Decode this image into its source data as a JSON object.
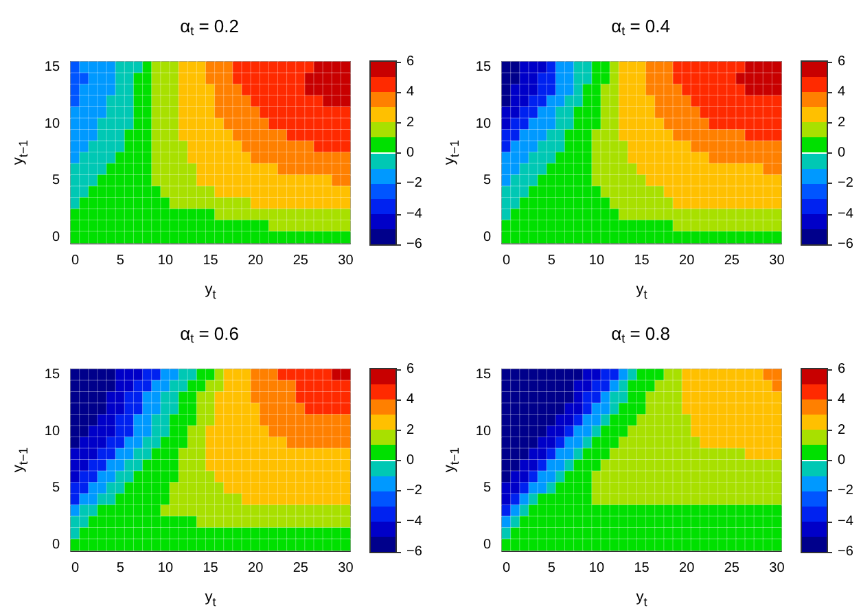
{
  "chart_data": [
    {
      "type": "heatmap",
      "title": "α$_{t}$ = 0.2",
      "xlabel": "y$_{t}$",
      "ylabel": "y$_{t−1}$",
      "categories": [
        "0",
        null,
        null,
        null,
        null,
        "5",
        null,
        null,
        null,
        null,
        "10",
        null,
        null,
        null,
        null,
        "15",
        null,
        null,
        null,
        null,
        "20",
        null,
        null,
        null,
        null,
        "25",
        null,
        null,
        null,
        null,
        "30"
      ],
      "y_categories": [
        "15",
        null,
        null,
        null,
        null,
        "10",
        null,
        null,
        null,
        null,
        "5",
        null,
        null,
        null,
        null,
        "0"
      ],
      "clim": [
        -6,
        6
      ],
      "cticks": [
        -6,
        -4,
        -2,
        0,
        2,
        4,
        6
      ],
      "cells": [
        [
          -2.5,
          -1.5,
          -1.5,
          -1.5,
          -1.5,
          -0.5,
          -0.5,
          -0.5,
          0.5,
          1.5,
          1.5,
          1.5,
          2.5,
          2.5,
          2.5,
          3.5,
          3.5,
          3.5,
          4.5,
          4.5,
          4.5,
          4.5,
          4.5,
          4.5,
          4.5,
          4.5,
          4.5,
          5.5,
          5.5,
          5.5,
          5.5
        ],
        [
          -2.5,
          -2.5,
          -1.5,
          -1.5,
          -1.5,
          -0.5,
          -0.5,
          0.5,
          0.5,
          1.5,
          1.5,
          1.5,
          2.5,
          2.5,
          2.5,
          3.5,
          3.5,
          3.5,
          4.5,
          4.5,
          4.5,
          4.5,
          4.5,
          4.5,
          4.5,
          4.5,
          5.5,
          5.5,
          5.5,
          5.5,
          5.5
        ],
        [
          -2.5,
          -1.5,
          -1.5,
          -1.5,
          -1.5,
          -0.5,
          -0.5,
          0.5,
          0.5,
          1.5,
          1.5,
          1.5,
          2.5,
          2.5,
          2.5,
          2.5,
          3.5,
          3.5,
          3.5,
          4.5,
          4.5,
          4.5,
          4.5,
          4.5,
          4.5,
          4.5,
          5.5,
          5.5,
          5.5,
          5.5,
          5.5
        ],
        [
          -2.5,
          -1.5,
          -1.5,
          -1.5,
          -0.5,
          -0.5,
          -0.5,
          0.5,
          0.5,
          1.5,
          1.5,
          1.5,
          2.5,
          2.5,
          2.5,
          2.5,
          3.5,
          3.5,
          3.5,
          3.5,
          4.5,
          4.5,
          4.5,
          4.5,
          4.5,
          4.5,
          4.5,
          4.5,
          5.5,
          5.5,
          5.5
        ],
        [
          -1.5,
          -1.5,
          -1.5,
          -1.5,
          -0.5,
          -0.5,
          -0.5,
          0.5,
          0.5,
          1.5,
          1.5,
          1.5,
          2.5,
          2.5,
          2.5,
          2.5,
          3.5,
          3.5,
          3.5,
          3.5,
          3.5,
          4.5,
          4.5,
          4.5,
          4.5,
          4.5,
          4.5,
          4.5,
          4.5,
          4.5,
          4.5
        ],
        [
          -1.5,
          -1.5,
          -1.5,
          -0.5,
          -0.5,
          -0.5,
          -0.5,
          0.5,
          0.5,
          1.5,
          1.5,
          1.5,
          2.5,
          2.5,
          2.5,
          2.5,
          2.5,
          3.5,
          3.5,
          3.5,
          3.5,
          3.5,
          4.5,
          4.5,
          4.5,
          4.5,
          4.5,
          4.5,
          4.5,
          4.5,
          4.5
        ],
        [
          -1.5,
          -1.5,
          -1.5,
          -0.5,
          -0.5,
          -0.5,
          0.5,
          0.5,
          0.5,
          1.5,
          1.5,
          1.5,
          2.5,
          2.5,
          2.5,
          2.5,
          2.5,
          2.5,
          3.5,
          3.5,
          3.5,
          3.5,
          3.5,
          3.5,
          4.5,
          4.5,
          4.5,
          4.5,
          4.5,
          4.5,
          4.5
        ],
        [
          -1.5,
          -1.5,
          -0.5,
          -0.5,
          -0.5,
          -0.5,
          0.5,
          0.5,
          0.5,
          1.5,
          1.5,
          1.5,
          1.5,
          2.5,
          2.5,
          2.5,
          2.5,
          2.5,
          2.5,
          3.5,
          3.5,
          3.5,
          3.5,
          3.5,
          3.5,
          3.5,
          3.5,
          4.5,
          4.5,
          4.5,
          4.5
        ],
        [
          -1.5,
          -0.5,
          -0.5,
          -0.5,
          -0.5,
          0.5,
          0.5,
          0.5,
          0.5,
          1.5,
          1.5,
          1.5,
          1.5,
          2.5,
          2.5,
          2.5,
          2.5,
          2.5,
          2.5,
          2.5,
          3.5,
          3.5,
          3.5,
          3.5,
          3.5,
          3.5,
          3.5,
          3.5,
          3.5,
          3.5,
          3.5
        ],
        [
          -0.5,
          -0.5,
          -0.5,
          -0.5,
          0.5,
          0.5,
          0.5,
          0.5,
          0.5,
          1.5,
          1.5,
          1.5,
          1.5,
          1.5,
          2.5,
          2.5,
          2.5,
          2.5,
          2.5,
          2.5,
          2.5,
          2.5,
          2.5,
          3.5,
          3.5,
          3.5,
          3.5,
          3.5,
          3.5,
          3.5,
          3.5
        ],
        [
          -0.5,
          -0.5,
          -0.5,
          0.5,
          0.5,
          0.5,
          0.5,
          0.5,
          0.5,
          1.5,
          1.5,
          1.5,
          1.5,
          1.5,
          2.5,
          2.5,
          2.5,
          2.5,
          2.5,
          2.5,
          2.5,
          2.5,
          2.5,
          2.5,
          2.5,
          2.5,
          2.5,
          2.5,
          2.5,
          3.5,
          3.5
        ],
        [
          -0.5,
          -0.5,
          0.5,
          0.5,
          0.5,
          0.5,
          0.5,
          0.5,
          0.5,
          0.5,
          1.5,
          1.5,
          1.5,
          1.5,
          1.5,
          1.5,
          2.5,
          2.5,
          2.5,
          2.5,
          2.5,
          2.5,
          2.5,
          2.5,
          2.5,
          2.5,
          2.5,
          2.5,
          2.5,
          2.5,
          2.5
        ],
        [
          -0.5,
          0.5,
          0.5,
          0.5,
          0.5,
          0.5,
          0.5,
          0.5,
          0.5,
          0.5,
          0.5,
          1.5,
          1.5,
          1.5,
          1.5,
          1.5,
          1.5,
          1.5,
          1.5,
          1.5,
          2.5,
          2.5,
          2.5,
          2.5,
          2.5,
          2.5,
          2.5,
          2.5,
          2.5,
          2.5,
          2.5
        ],
        [
          0.5,
          0.5,
          0.5,
          0.5,
          0.5,
          0.5,
          0.5,
          0.5,
          0.5,
          0.5,
          0.5,
          0.5,
          0.5,
          0.5,
          0.5,
          0.5,
          1.5,
          1.5,
          1.5,
          1.5,
          1.5,
          1.5,
          1.5,
          1.5,
          1.5,
          1.5,
          1.5,
          1.5,
          1.5,
          1.5,
          1.5
        ],
        [
          0.5,
          0.5,
          0.5,
          0.5,
          0.5,
          0.5,
          0.5,
          0.5,
          0.5,
          0.5,
          0.5,
          0.5,
          0.5,
          0.5,
          0.5,
          0.5,
          0.5,
          0.5,
          0.5,
          0.5,
          0.5,
          0.5,
          1.5,
          1.5,
          1.5,
          1.5,
          1.5,
          1.5,
          1.5,
          1.5,
          1.5
        ],
        [
          0.5,
          0.5,
          0.5,
          0.5,
          0.5,
          0.5,
          0.5,
          0.5,
          0.5,
          0.5,
          0.5,
          0.5,
          0.5,
          0.5,
          0.5,
          0.5,
          0.5,
          0.5,
          0.5,
          0.5,
          0.5,
          0.5,
          0.5,
          0.5,
          0.5,
          0.5,
          0.5,
          0.5,
          0.5,
          0.5,
          0.5
        ]
      ]
    },
    {
      "type": "heatmap",
      "title": "α$_{t}$ = 0.4",
      "xlabel": "y$_{t}$",
      "ylabel": "y$_{t−1}$",
      "categories": [
        "0",
        null,
        null,
        null,
        null,
        "5",
        null,
        null,
        null,
        null,
        "10",
        null,
        null,
        null,
        null,
        "15",
        null,
        null,
        null,
        null,
        "20",
        null,
        null,
        null,
        null,
        "25",
        null,
        null,
        null,
        null,
        "30"
      ],
      "y_categories": [
        "15",
        null,
        null,
        null,
        null,
        "10",
        null,
        null,
        null,
        null,
        "5",
        null,
        null,
        null,
        null,
        "0"
      ],
      "clim": [
        -6,
        6
      ],
      "cticks": [
        -6,
        -4,
        -2,
        0,
        2,
        4,
        6
      ],
      "cells": [
        [
          -5.5,
          -5.5,
          -4.5,
          -4.5,
          -4.5,
          -3.5,
          -1.5,
          -1.5,
          -0.5,
          -0.5,
          0.5,
          0.5,
          1.5,
          2.5,
          2.5,
          2.5,
          3.5,
          3.5,
          3.5,
          4.5,
          4.5,
          4.5,
          4.5,
          4.5,
          4.5,
          4.5,
          4.5,
          5.5,
          5.5,
          5.5,
          5.5
        ],
        [
          -5.5,
          -5.5,
          -4.5,
          -4.5,
          -3.5,
          -3.5,
          -1.5,
          -1.5,
          -0.5,
          -0.5,
          0.5,
          0.5,
          1.5,
          2.5,
          2.5,
          2.5,
          3.5,
          3.5,
          3.5,
          4.5,
          4.5,
          4.5,
          4.5,
          4.5,
          4.5,
          4.5,
          5.5,
          5.5,
          5.5,
          5.5,
          5.5
        ],
        [
          -5.5,
          -4.5,
          -4.5,
          -4.5,
          -3.5,
          -3.5,
          -1.5,
          -1.5,
          -0.5,
          0.5,
          0.5,
          1.5,
          1.5,
          2.5,
          2.5,
          2.5,
          3.5,
          3.5,
          3.5,
          3.5,
          4.5,
          4.5,
          4.5,
          4.5,
          4.5,
          4.5,
          4.5,
          5.5,
          5.5,
          5.5,
          5.5
        ],
        [
          -5.5,
          -4.5,
          -4.5,
          -3.5,
          -3.5,
          -1.5,
          -1.5,
          -0.5,
          -0.5,
          0.5,
          0.5,
          1.5,
          1.5,
          2.5,
          2.5,
          2.5,
          2.5,
          3.5,
          3.5,
          3.5,
          3.5,
          4.5,
          4.5,
          4.5,
          4.5,
          4.5,
          4.5,
          4.5,
          4.5,
          4.5,
          4.5
        ],
        [
          -4.5,
          -4.5,
          -3.5,
          -3.5,
          -1.5,
          -1.5,
          -0.5,
          -0.5,
          0.5,
          0.5,
          0.5,
          1.5,
          1.5,
          2.5,
          2.5,
          2.5,
          2.5,
          3.5,
          3.5,
          3.5,
          3.5,
          3.5,
          4.5,
          4.5,
          4.5,
          4.5,
          4.5,
          4.5,
          4.5,
          4.5,
          4.5
        ],
        [
          -4.5,
          -3.5,
          -3.5,
          -1.5,
          -1.5,
          -1.5,
          -0.5,
          -0.5,
          0.5,
          0.5,
          0.5,
          1.5,
          1.5,
          2.5,
          2.5,
          2.5,
          2.5,
          2.5,
          3.5,
          3.5,
          3.5,
          3.5,
          3.5,
          4.5,
          4.5,
          4.5,
          4.5,
          4.5,
          4.5,
          4.5,
          4.5
        ],
        [
          -3.5,
          -3.5,
          -1.5,
          -1.5,
          -1.5,
          -0.5,
          -0.5,
          0.5,
          0.5,
          0.5,
          1.5,
          1.5,
          1.5,
          2.5,
          2.5,
          2.5,
          2.5,
          2.5,
          2.5,
          3.5,
          3.5,
          3.5,
          3.5,
          3.5,
          3.5,
          3.5,
          3.5,
          4.5,
          4.5,
          4.5,
          4.5
        ],
        [
          -3.5,
          -1.5,
          -1.5,
          -1.5,
          -0.5,
          -0.5,
          -0.5,
          0.5,
          0.5,
          0.5,
          1.5,
          1.5,
          1.5,
          1.5,
          2.5,
          2.5,
          2.5,
          2.5,
          2.5,
          2.5,
          2.5,
          3.5,
          3.5,
          3.5,
          3.5,
          3.5,
          3.5,
          3.5,
          3.5,
          3.5,
          3.5
        ],
        [
          -1.5,
          -1.5,
          -1.5,
          -0.5,
          -0.5,
          -0.5,
          0.5,
          0.5,
          0.5,
          0.5,
          1.5,
          1.5,
          1.5,
          1.5,
          2.5,
          2.5,
          2.5,
          2.5,
          2.5,
          2.5,
          2.5,
          2.5,
          2.5,
          3.5,
          3.5,
          3.5,
          3.5,
          3.5,
          3.5,
          3.5,
          3.5
        ],
        [
          -1.5,
          -1.5,
          -0.5,
          -0.5,
          -0.5,
          0.5,
          0.5,
          0.5,
          0.5,
          0.5,
          1.5,
          1.5,
          1.5,
          1.5,
          1.5,
          2.5,
          2.5,
          2.5,
          2.5,
          2.5,
          2.5,
          2.5,
          2.5,
          2.5,
          2.5,
          2.5,
          2.5,
          2.5,
          2.5,
          3.5,
          3.5
        ],
        [
          -1.5,
          -0.5,
          -0.5,
          -0.5,
          0.5,
          0.5,
          0.5,
          0.5,
          0.5,
          0.5,
          1.5,
          1.5,
          1.5,
          1.5,
          1.5,
          1.5,
          2.5,
          2.5,
          2.5,
          2.5,
          2.5,
          2.5,
          2.5,
          2.5,
          2.5,
          2.5,
          2.5,
          2.5,
          2.5,
          2.5,
          2.5
        ],
        [
          -0.5,
          -0.5,
          -0.5,
          0.5,
          0.5,
          0.5,
          0.5,
          0.5,
          0.5,
          0.5,
          0.5,
          1.5,
          1.5,
          1.5,
          1.5,
          1.5,
          1.5,
          1.5,
          2.5,
          2.5,
          2.5,
          2.5,
          2.5,
          2.5,
          2.5,
          2.5,
          2.5,
          2.5,
          2.5,
          2.5,
          2.5
        ],
        [
          -0.5,
          -0.5,
          0.5,
          0.5,
          0.5,
          0.5,
          0.5,
          0.5,
          0.5,
          0.5,
          0.5,
          0.5,
          1.5,
          1.5,
          1.5,
          1.5,
          1.5,
          1.5,
          1.5,
          2.5,
          2.5,
          2.5,
          2.5,
          2.5,
          2.5,
          2.5,
          2.5,
          2.5,
          2.5,
          2.5,
          2.5
        ],
        [
          -0.5,
          0.5,
          0.5,
          0.5,
          0.5,
          0.5,
          0.5,
          0.5,
          0.5,
          0.5,
          0.5,
          0.5,
          0.5,
          1.5,
          1.5,
          1.5,
          1.5,
          1.5,
          1.5,
          1.5,
          1.5,
          1.5,
          1.5,
          1.5,
          1.5,
          1.5,
          1.5,
          1.5,
          1.5,
          1.5,
          1.5
        ],
        [
          0.5,
          0.5,
          0.5,
          0.5,
          0.5,
          0.5,
          0.5,
          0.5,
          0.5,
          0.5,
          0.5,
          0.5,
          0.5,
          0.5,
          0.5,
          0.5,
          0.5,
          0.5,
          0.5,
          1.5,
          1.5,
          1.5,
          1.5,
          1.5,
          1.5,
          1.5,
          1.5,
          1.5,
          1.5,
          1.5,
          1.5
        ],
        [
          0.5,
          0.5,
          0.5,
          0.5,
          0.5,
          0.5,
          0.5,
          0.5,
          0.5,
          0.5,
          0.5,
          0.5,
          0.5,
          0.5,
          0.5,
          0.5,
          0.5,
          0.5,
          0.5,
          0.5,
          0.5,
          0.5,
          0.5,
          0.5,
          0.5,
          0.5,
          0.5,
          0.5,
          0.5,
          0.5,
          0.5
        ]
      ]
    },
    {
      "type": "heatmap",
      "title": "α$_{t}$ = 0.6",
      "xlabel": "y$_{t}$",
      "ylabel": "y$_{t−1}$",
      "categories": [
        "0",
        null,
        null,
        null,
        null,
        "5",
        null,
        null,
        null,
        null,
        "10",
        null,
        null,
        null,
        null,
        "15",
        null,
        null,
        null,
        null,
        "20",
        null,
        null,
        null,
        null,
        "25",
        null,
        null,
        null,
        null,
        "30"
      ],
      "y_categories": [
        "15",
        null,
        null,
        null,
        null,
        "10",
        null,
        null,
        null,
        null,
        "5",
        null,
        null,
        null,
        null,
        "0"
      ],
      "clim": [
        -6,
        6
      ],
      "cticks": [
        -6,
        -4,
        -2,
        0,
        2,
        4,
        6
      ],
      "cells": [
        [
          -5.5,
          -5.5,
          -5.5,
          -5.5,
          -5.5,
          -4.5,
          -4.5,
          -4.5,
          -3.5,
          -3.5,
          -1.5,
          -1.5,
          -0.5,
          -0.5,
          0.5,
          0.5,
          1.5,
          2.5,
          2.5,
          2.5,
          3.5,
          3.5,
          3.5,
          4.5,
          4.5,
          4.5,
          4.5,
          4.5,
          4.5,
          5.5,
          5.5
        ],
        [
          -5.5,
          -5.5,
          -5.5,
          -5.5,
          -5.5,
          -4.5,
          -4.5,
          -3.5,
          -3.5,
          -1.5,
          -1.5,
          -0.5,
          -0.5,
          0.5,
          0.5,
          1.5,
          1.5,
          2.5,
          2.5,
          2.5,
          3.5,
          3.5,
          3.5,
          3.5,
          3.5,
          4.5,
          4.5,
          4.5,
          4.5,
          4.5,
          4.5
        ],
        [
          -5.5,
          -5.5,
          -5.5,
          -5.5,
          -4.5,
          -4.5,
          -3.5,
          -3.5,
          -1.5,
          -1.5,
          -0.5,
          -0.5,
          0.5,
          0.5,
          1.5,
          1.5,
          2.5,
          2.5,
          2.5,
          2.5,
          3.5,
          3.5,
          3.5,
          3.5,
          3.5,
          4.5,
          4.5,
          4.5,
          4.5,
          4.5,
          4.5
        ],
        [
          -5.5,
          -5.5,
          -5.5,
          -5.5,
          -4.5,
          -4.5,
          -3.5,
          -3.5,
          -1.5,
          -1.5,
          -0.5,
          -0.5,
          0.5,
          0.5,
          1.5,
          1.5,
          2.5,
          2.5,
          2.5,
          2.5,
          2.5,
          3.5,
          3.5,
          3.5,
          3.5,
          3.5,
          4.5,
          4.5,
          4.5,
          4.5,
          4.5
        ],
        [
          -5.5,
          -5.5,
          -5.5,
          -4.5,
          -4.5,
          -3.5,
          -3.5,
          -1.5,
          -1.5,
          -0.5,
          -0.5,
          0.5,
          0.5,
          0.5,
          1.5,
          1.5,
          2.5,
          2.5,
          2.5,
          2.5,
          2.5,
          3.5,
          3.5,
          3.5,
          3.5,
          3.5,
          3.5,
          3.5,
          3.5,
          3.5,
          3.5
        ],
        [
          -5.5,
          -5.5,
          -4.5,
          -4.5,
          -4.5,
          -3.5,
          -3.5,
          -1.5,
          -1.5,
          -0.5,
          -0.5,
          0.5,
          0.5,
          1.5,
          1.5,
          2.5,
          2.5,
          2.5,
          2.5,
          2.5,
          2.5,
          2.5,
          3.5,
          3.5,
          3.5,
          3.5,
          3.5,
          3.5,
          3.5,
          3.5,
          3.5
        ],
        [
          -5.5,
          -4.5,
          -4.5,
          -4.5,
          -3.5,
          -3.5,
          -1.5,
          -1.5,
          -0.5,
          -0.5,
          0.5,
          0.5,
          0.5,
          1.5,
          1.5,
          2.5,
          2.5,
          2.5,
          2.5,
          2.5,
          2.5,
          2.5,
          2.5,
          2.5,
          3.5,
          3.5,
          3.5,
          3.5,
          3.5,
          3.5,
          3.5
        ],
        [
          -4.5,
          -4.5,
          -4.5,
          -3.5,
          -3.5,
          -1.5,
          -1.5,
          -0.5,
          -0.5,
          0.5,
          0.5,
          0.5,
          1.5,
          1.5,
          1.5,
          2.5,
          2.5,
          2.5,
          2.5,
          2.5,
          2.5,
          2.5,
          2.5,
          2.5,
          2.5,
          2.5,
          2.5,
          2.5,
          2.5,
          2.5,
          2.5
        ],
        [
          -4.5,
          -4.5,
          -3.5,
          -3.5,
          -1.5,
          -1.5,
          -0.5,
          -0.5,
          0.5,
          0.5,
          0.5,
          0.5,
          1.5,
          1.5,
          1.5,
          2.5,
          2.5,
          2.5,
          2.5,
          2.5,
          2.5,
          2.5,
          2.5,
          2.5,
          2.5,
          2.5,
          2.5,
          2.5,
          2.5,
          2.5,
          2.5
        ],
        [
          -4.5,
          -3.5,
          -3.5,
          -1.5,
          -1.5,
          -0.5,
          -0.5,
          0.5,
          0.5,
          0.5,
          0.5,
          0.5,
          1.5,
          1.5,
          1.5,
          1.5,
          2.5,
          2.5,
          2.5,
          2.5,
          2.5,
          2.5,
          2.5,
          2.5,
          2.5,
          2.5,
          2.5,
          2.5,
          2.5,
          2.5,
          2.5
        ],
        [
          -3.5,
          -3.5,
          -1.5,
          -1.5,
          -0.5,
          -0.5,
          0.5,
          0.5,
          0.5,
          0.5,
          0.5,
          1.5,
          1.5,
          1.5,
          1.5,
          1.5,
          1.5,
          2.5,
          2.5,
          2.5,
          2.5,
          2.5,
          2.5,
          2.5,
          2.5,
          2.5,
          2.5,
          2.5,
          2.5,
          2.5,
          2.5
        ],
        [
          -3.5,
          -1.5,
          -1.5,
          -0.5,
          -0.5,
          0.5,
          0.5,
          0.5,
          0.5,
          0.5,
          0.5,
          1.5,
          1.5,
          1.5,
          1.5,
          1.5,
          1.5,
          1.5,
          1.5,
          2.5,
          2.5,
          2.5,
          2.5,
          2.5,
          2.5,
          2.5,
          2.5,
          2.5,
          2.5,
          2.5,
          2.5
        ],
        [
          -1.5,
          -0.5,
          -0.5,
          0.5,
          0.5,
          0.5,
          0.5,
          0.5,
          0.5,
          0.5,
          1.5,
          1.5,
          1.5,
          1.5,
          1.5,
          1.5,
          1.5,
          1.5,
          1.5,
          1.5,
          1.5,
          1.5,
          1.5,
          1.5,
          1.5,
          1.5,
          1.5,
          1.5,
          1.5,
          1.5,
          1.5
        ],
        [
          -0.5,
          -0.5,
          0.5,
          0.5,
          0.5,
          0.5,
          0.5,
          0.5,
          0.5,
          0.5,
          0.5,
          0.5,
          0.5,
          0.5,
          1.5,
          1.5,
          1.5,
          1.5,
          1.5,
          1.5,
          1.5,
          1.5,
          1.5,
          1.5,
          1.5,
          1.5,
          1.5,
          1.5,
          1.5,
          1.5,
          1.5
        ],
        [
          -0.5,
          0.5,
          0.5,
          0.5,
          0.5,
          0.5,
          0.5,
          0.5,
          0.5,
          0.5,
          0.5,
          0.5,
          0.5,
          0.5,
          0.5,
          0.5,
          0.5,
          0.5,
          0.5,
          0.5,
          0.5,
          0.5,
          0.5,
          0.5,
          0.5,
          0.5,
          0.5,
          0.5,
          0.5,
          0.5,
          0.5
        ],
        [
          0.5,
          0.5,
          0.5,
          0.5,
          0.5,
          0.5,
          0.5,
          0.5,
          0.5,
          0.5,
          0.5,
          0.5,
          0.5,
          0.5,
          0.5,
          0.5,
          0.5,
          0.5,
          0.5,
          0.5,
          0.5,
          0.5,
          0.5,
          0.5,
          0.5,
          0.5,
          0.5,
          0.5,
          0.5,
          0.5,
          0.5
        ]
      ]
    },
    {
      "type": "heatmap",
      "title": "α$_{t}$ = 0.8",
      "xlabel": "y$_{t}$",
      "ylabel": "y$_{t−1}$",
      "categories": [
        "0",
        null,
        null,
        null,
        null,
        "5",
        null,
        null,
        null,
        null,
        "10",
        null,
        null,
        null,
        null,
        "15",
        null,
        null,
        null,
        null,
        "20",
        null,
        null,
        null,
        null,
        "25",
        null,
        null,
        null,
        null,
        "30"
      ],
      "y_categories": [
        "15",
        null,
        null,
        null,
        null,
        "10",
        null,
        null,
        null,
        null,
        "5",
        null,
        null,
        null,
        null,
        "0"
      ],
      "clim": [
        -6,
        6
      ],
      "cticks": [
        -6,
        -4,
        -2,
        0,
        2,
        4,
        6
      ],
      "cells": [
        [
          -5.5,
          -5.5,
          -5.5,
          -5.5,
          -5.5,
          -5.5,
          -5.5,
          -5.5,
          -5.5,
          -4.5,
          -4.5,
          -3.5,
          -3.5,
          -1.5,
          -0.5,
          0.5,
          0.5,
          0.5,
          1.5,
          1.5,
          2.5,
          2.5,
          2.5,
          2.5,
          2.5,
          2.5,
          2.5,
          2.5,
          2.5,
          3.5,
          3.5
        ],
        [
          -5.5,
          -5.5,
          -5.5,
          -5.5,
          -5.5,
          -5.5,
          -5.5,
          -5.5,
          -4.5,
          -4.5,
          -3.5,
          -3.5,
          -1.5,
          -0.5,
          0.5,
          0.5,
          0.5,
          1.5,
          1.5,
          1.5,
          2.5,
          2.5,
          2.5,
          2.5,
          2.5,
          2.5,
          2.5,
          2.5,
          2.5,
          2.5,
          3.5
        ],
        [
          -5.5,
          -5.5,
          -5.5,
          -5.5,
          -5.5,
          -5.5,
          -5.5,
          -5.5,
          -4.5,
          -3.5,
          -3.5,
          -1.5,
          -0.5,
          -0.5,
          0.5,
          0.5,
          1.5,
          1.5,
          1.5,
          1.5,
          2.5,
          2.5,
          2.5,
          2.5,
          2.5,
          2.5,
          2.5,
          2.5,
          2.5,
          2.5,
          2.5
        ],
        [
          -5.5,
          -5.5,
          -5.5,
          -5.5,
          -5.5,
          -5.5,
          -5.5,
          -4.5,
          -4.5,
          -3.5,
          -1.5,
          -1.5,
          -0.5,
          0.5,
          0.5,
          0.5,
          1.5,
          1.5,
          1.5,
          1.5,
          2.5,
          2.5,
          2.5,
          2.5,
          2.5,
          2.5,
          2.5,
          2.5,
          2.5,
          2.5,
          2.5
        ],
        [
          -5.5,
          -5.5,
          -5.5,
          -5.5,
          -5.5,
          -5.5,
          -4.5,
          -4.5,
          -3.5,
          -1.5,
          -1.5,
          -0.5,
          0.5,
          0.5,
          0.5,
          1.5,
          1.5,
          1.5,
          1.5,
          1.5,
          1.5,
          2.5,
          2.5,
          2.5,
          2.5,
          2.5,
          2.5,
          2.5,
          2.5,
          2.5,
          2.5
        ],
        [
          -5.5,
          -5.5,
          -5.5,
          -5.5,
          -5.5,
          -4.5,
          -4.5,
          -3.5,
          -1.5,
          -1.5,
          -0.5,
          0.5,
          0.5,
          0.5,
          1.5,
          1.5,
          1.5,
          1.5,
          1.5,
          1.5,
          1.5,
          2.5,
          2.5,
          2.5,
          2.5,
          2.5,
          2.5,
          2.5,
          2.5,
          2.5,
          2.5
        ],
        [
          -5.5,
          -5.5,
          -5.5,
          -5.5,
          -4.5,
          -4.5,
          -3.5,
          -1.5,
          -1.5,
          -0.5,
          0.5,
          0.5,
          0.5,
          1.5,
          1.5,
          1.5,
          1.5,
          1.5,
          1.5,
          1.5,
          1.5,
          1.5,
          2.5,
          2.5,
          2.5,
          2.5,
          2.5,
          2.5,
          2.5,
          2.5,
          2.5
        ],
        [
          -5.5,
          -5.5,
          -5.5,
          -4.5,
          -4.5,
          -3.5,
          -1.5,
          -1.5,
          -0.5,
          0.5,
          0.5,
          0.5,
          1.5,
          1.5,
          1.5,
          1.5,
          1.5,
          1.5,
          1.5,
          1.5,
          1.5,
          1.5,
          1.5,
          1.5,
          1.5,
          1.5,
          1.5,
          2.5,
          2.5,
          2.5,
          2.5
        ],
        [
          -5.5,
          -5.5,
          -4.5,
          -4.5,
          -3.5,
          -1.5,
          -1.5,
          -0.5,
          0.5,
          0.5,
          0.5,
          1.5,
          1.5,
          1.5,
          1.5,
          1.5,
          1.5,
          1.5,
          1.5,
          1.5,
          1.5,
          1.5,
          1.5,
          1.5,
          1.5,
          1.5,
          1.5,
          1.5,
          1.5,
          1.5,
          1.5
        ],
        [
          -5.5,
          -4.5,
          -4.5,
          -3.5,
          -1.5,
          -1.5,
          -0.5,
          0.5,
          0.5,
          0.5,
          1.5,
          1.5,
          1.5,
          1.5,
          1.5,
          1.5,
          1.5,
          1.5,
          1.5,
          1.5,
          1.5,
          1.5,
          1.5,
          1.5,
          1.5,
          1.5,
          1.5,
          1.5,
          1.5,
          1.5,
          1.5
        ],
        [
          -4.5,
          -4.5,
          -3.5,
          -1.5,
          -1.5,
          -0.5,
          0.5,
          0.5,
          0.5,
          0.5,
          1.5,
          1.5,
          1.5,
          1.5,
          1.5,
          1.5,
          1.5,
          1.5,
          1.5,
          1.5,
          1.5,
          1.5,
          1.5,
          1.5,
          1.5,
          1.5,
          1.5,
          1.5,
          1.5,
          1.5,
          1.5
        ],
        [
          -4.5,
          -3.5,
          -1.5,
          -0.5,
          0.5,
          0.5,
          0.5,
          0.5,
          0.5,
          0.5,
          1.5,
          1.5,
          1.5,
          1.5,
          1.5,
          1.5,
          1.5,
          1.5,
          1.5,
          1.5,
          1.5,
          1.5,
          1.5,
          1.5,
          1.5,
          1.5,
          1.5,
          1.5,
          1.5,
          1.5,
          1.5
        ],
        [
          -3.5,
          -1.5,
          -0.5,
          0.5,
          0.5,
          0.5,
          0.5,
          0.5,
          0.5,
          0.5,
          0.5,
          0.5,
          0.5,
          0.5,
          0.5,
          0.5,
          0.5,
          0.5,
          0.5,
          0.5,
          0.5,
          0.5,
          0.5,
          0.5,
          0.5,
          0.5,
          0.5,
          0.5,
          0.5,
          0.5,
          0.5
        ],
        [
          -1.5,
          -0.5,
          0.5,
          0.5,
          0.5,
          0.5,
          0.5,
          0.5,
          0.5,
          0.5,
          0.5,
          0.5,
          0.5,
          0.5,
          0.5,
          0.5,
          0.5,
          0.5,
          0.5,
          0.5,
          0.5,
          0.5,
          0.5,
          0.5,
          0.5,
          0.5,
          0.5,
          0.5,
          0.5,
          0.5,
          0.5
        ],
        [
          -0.5,
          0.5,
          0.5,
          0.5,
          0.5,
          0.5,
          0.5,
          0.5,
          0.5,
          0.5,
          0.5,
          0.5,
          0.5,
          0.5,
          0.5,
          0.5,
          0.5,
          0.5,
          0.5,
          0.5,
          0.5,
          0.5,
          0.5,
          0.5,
          0.5,
          0.5,
          0.5,
          0.5,
          0.5,
          0.5,
          0.5
        ],
        [
          0.5,
          0.5,
          0.5,
          0.5,
          0.5,
          0.5,
          0.5,
          0.5,
          0.5,
          0.5,
          0.5,
          0.5,
          0.5,
          0.5,
          0.5,
          0.5,
          0.5,
          0.5,
          0.5,
          0.5,
          0.5,
          0.5,
          0.5,
          0.5,
          0.5,
          0.5,
          0.5,
          0.5,
          0.5,
          0.5,
          0.5
        ]
      ]
    }
  ]
}
